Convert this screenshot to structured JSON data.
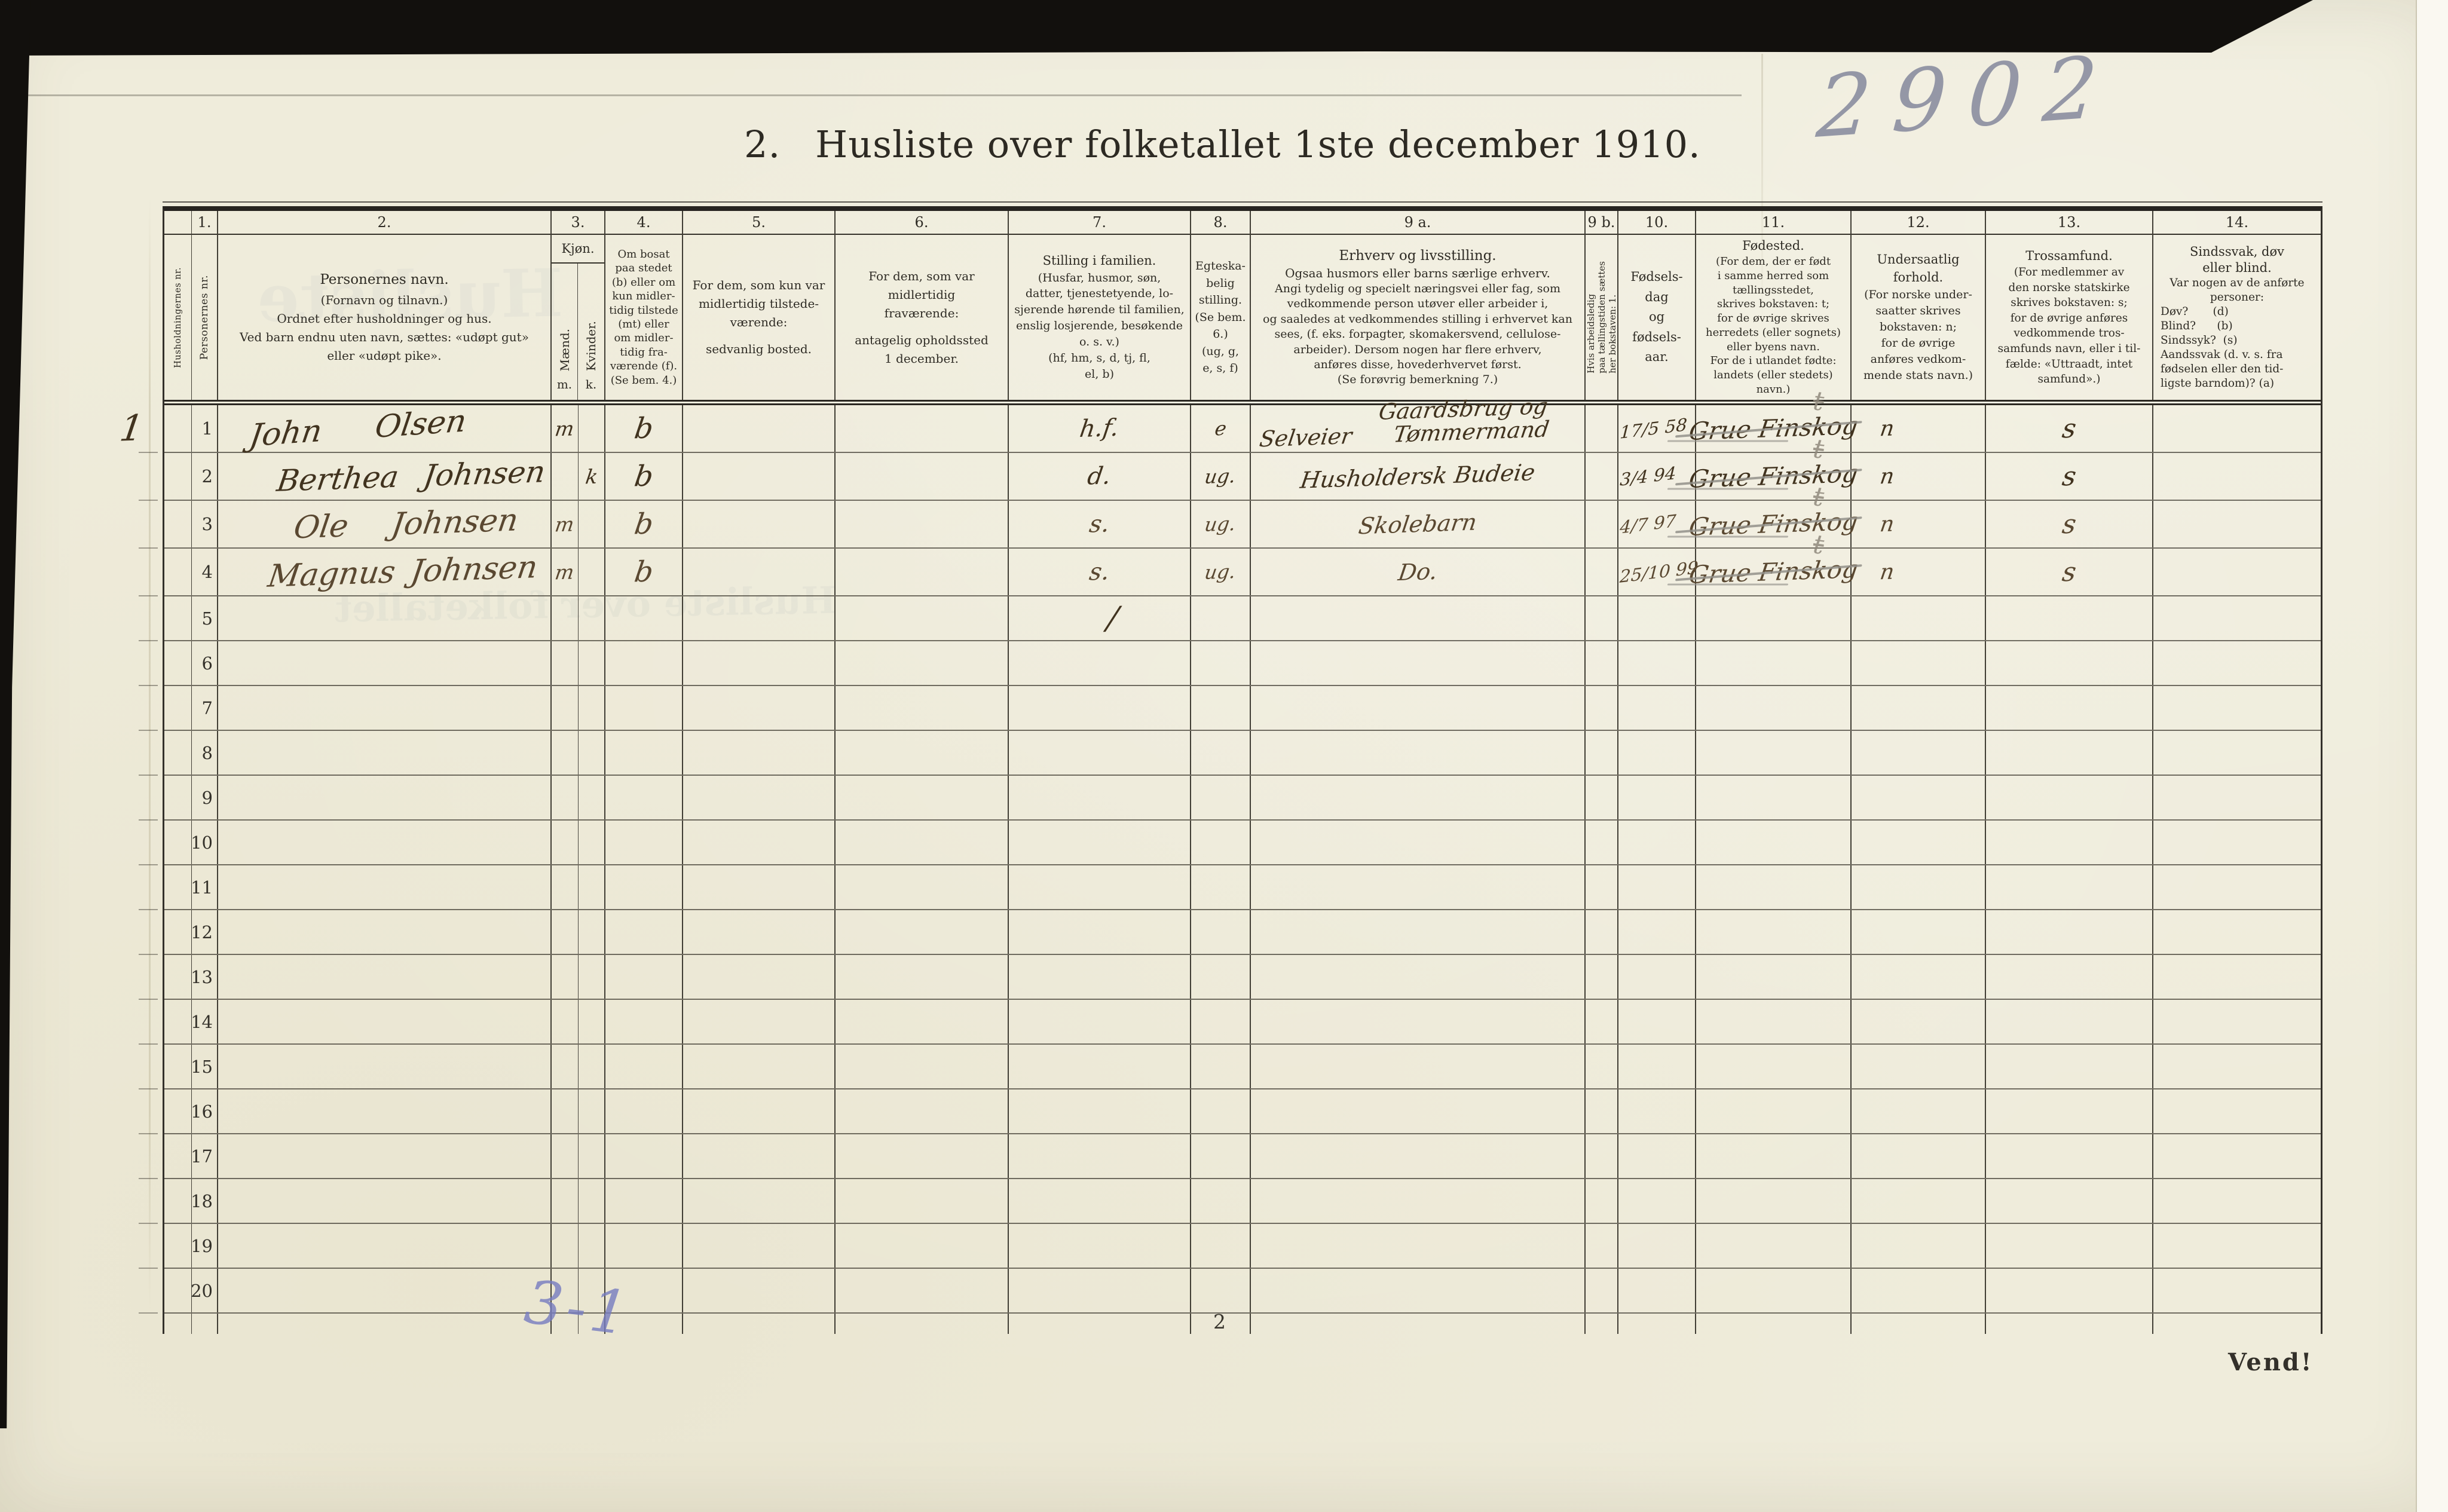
{
  "page": {
    "archive_number": "2902",
    "title_prefix": "2.",
    "title": "Husliste over folketallet 1ste december 1910.",
    "page_number": "2",
    "turn_note": "Vend!",
    "tally_note": "3-1"
  },
  "ghosts": {
    "g1": "Husliste",
    "g2": "Husliste over folketallet"
  },
  "table": {
    "header": {
      "col_household": {
        "num": "",
        "label": "Husholdningernes nr."
      },
      "col_person": {
        "num": "1.",
        "label": "Personernes nr."
      },
      "col_name": {
        "num": "2.",
        "lines": [
          "Personernes navn.",
          "(Fornavn og tilnavn.)",
          "Ordnet efter husholdninger og hus.",
          "Ved barn endnu uten navn, sættes: «udøpt gut»",
          "eller «udøpt pike»."
        ]
      },
      "col_sex": {
        "num": "3.",
        "label": "Kjøn.",
        "male": "Mænd.",
        "female": "Kvinder.",
        "male_abbr": "m.",
        "female_abbr": "k."
      },
      "col_resident": {
        "num": "4.",
        "lines": [
          "Om bosat",
          "paa stedet",
          "(b) eller om",
          "kun midler-",
          "tidig tilstede",
          "(mt) eller",
          "om midler-",
          "tidig fra-",
          "værende (f).",
          "(Se bem. 4.)"
        ]
      },
      "col_present_abode": {
        "num": "5.",
        "lines": [
          "For dem, som kun var",
          "midlertidig tilstede-",
          "værende:",
          "",
          "sedvanlig bosted."
        ]
      },
      "col_absent_abode": {
        "num": "6.",
        "lines": [
          "For dem, som var",
          "midlertidig",
          "fraværende:",
          "",
          "antagelig opholdssted",
          "1 december."
        ]
      },
      "col_family_position": {
        "num": "7.",
        "lines": [
          "Stilling i familien.",
          "(Husfar, husmor, søn,",
          "datter, tjenestetyende, lo-",
          "sjerende hørende til familien,",
          "enslig losjerende, besøkende",
          "o. s. v.)",
          "(hf, hm, s, d, tj, fl,",
          "el, b)"
        ]
      },
      "col_marital": {
        "num": "8.",
        "lines": [
          "Egteska-",
          "belig",
          "stilling.",
          "(Se bem. 6.)",
          "(ug, g,",
          "e, s, f)"
        ]
      },
      "col_occupation": {
        "num": "9 a.",
        "lines": [
          "Erhverv og livsstilling.",
          "Ogsaa husmors eller barns særlige erhverv.",
          "Angi tydelig og specielt næringsvei eller fag, som",
          "vedkommende person utøver eller arbeider i,",
          "og saaledes at vedkommendes stilling i erhvervet kan",
          "sees, (f. eks.  forpagter,  skomakersvend, cellulose-",
          "arbeider).  Dersom nogen har flere erhverv,",
          "anføres disse, hovederhvervet først.",
          "(Se forøvrig bemerkning 7.)"
        ]
      },
      "col_unemployed": {
        "num": "9 b.",
        "lines": [
          "Hvis arbeidsledig",
          "paa tællingstiden sættes",
          "her bokstaven: 1."
        ]
      },
      "col_birth_date": {
        "num": "10.",
        "lines": [
          "Fødsels-",
          "dag",
          "og",
          "fødsels-",
          "aar."
        ]
      },
      "col_birthplace": {
        "num": "11.",
        "lines": [
          "Fødested.",
          "(For dem, der er født",
          "i samme herred som",
          "tællingsstedet,",
          "skrives bokstaven: t;",
          "for de øvrige skrives",
          "herredets (eller sognets)",
          "eller byens navn.",
          "For de i utlandet fødte:",
          "landets (eller stedets)",
          "navn.)"
        ]
      },
      "col_citizenship": {
        "num": "12.",
        "lines": [
          "Undersaatlig",
          "forhold.",
          "(For norske under-",
          "saatter skrives",
          "bokstaven: n;",
          "for de øvrige",
          "anføres vedkom-",
          "mende stats navn.)"
        ]
      },
      "col_religion": {
        "num": "13.",
        "lines": [
          "Trossamfund.",
          "(For medlemmer av",
          "den norske statskirke",
          "skrives bokstaven: s;",
          "for de øvrige anføres",
          "vedkommende tros-",
          "samfunds navn, eller i til-",
          "fælde:  «Uttraadt, intet",
          "samfund».)"
        ]
      },
      "col_disability": {
        "num": "14.",
        "lines": [
          "Sindssvak, døv",
          "eller blind.",
          "Var nogen av de anførte",
          "personer:",
          "Døv?       (d)",
          "Blind?      (b)",
          "Sindssyk?  (s)",
          "Aandssvak (d. v. s. fra",
          "fødselen eller den tid-",
          "ligste barndom)? (a)"
        ]
      }
    },
    "row_numbers": [
      "1",
      "2",
      "3",
      "4",
      "5",
      "6",
      "7",
      "8",
      "9",
      "10",
      "11",
      "12",
      "13",
      "14",
      "15",
      "16",
      "17",
      "18",
      "19",
      "20"
    ],
    "stray_mark": "/",
    "records": [
      {
        "household_nr": "1",
        "name": "John Olsen",
        "sex_m": "m",
        "sex_k": "",
        "resident": "b",
        "family_position": "h.f.",
        "marital_status": "e",
        "occupation_line1": "Gaardsbrug og",
        "occupation_line2": "Selveier Tømmermand",
        "birth_date": "17/5 58",
        "birthplace": "Grue Finskog",
        "birthplace_correction": "t",
        "citizenship": "n",
        "religion": "s"
      },
      {
        "household_nr": "",
        "name": "Berthea Johnsen",
        "sex_m": "",
        "sex_k": "k",
        "resident": "b",
        "family_position": "d.",
        "marital_status": "ug.",
        "occupation_line1": "Husholdersk Budeie",
        "occupation_line2": "",
        "birth_date": "3/4 94",
        "birthplace": "Grue Finskog",
        "birthplace_correction": "t",
        "citizenship": "n",
        "religion": "s"
      },
      {
        "household_nr": "",
        "name": "Ole Johnsen",
        "sex_m": "m",
        "sex_k": "",
        "resident": "b",
        "family_position": "s.",
        "marital_status": "ug.",
        "occupation_line1": "Skolebarn",
        "occupation_line2": "",
        "birth_date": "4/7 97",
        "birthplace": "Grue Finskog",
        "birthplace_correction": "t",
        "citizenship": "n",
        "religion": "s"
      },
      {
        "household_nr": "",
        "name": "Magnus Johnsen",
        "sex_m": "m",
        "sex_k": "",
        "resident": "b",
        "family_position": "s.",
        "marital_status": "ug.",
        "occupation_line1": "Do.",
        "occupation_line2": "",
        "birth_date": "25/10 99",
        "birthplace": "Grue Finskog",
        "birthplace_correction": "t",
        "citizenship": "n",
        "religion": "s"
      }
    ]
  }
}
